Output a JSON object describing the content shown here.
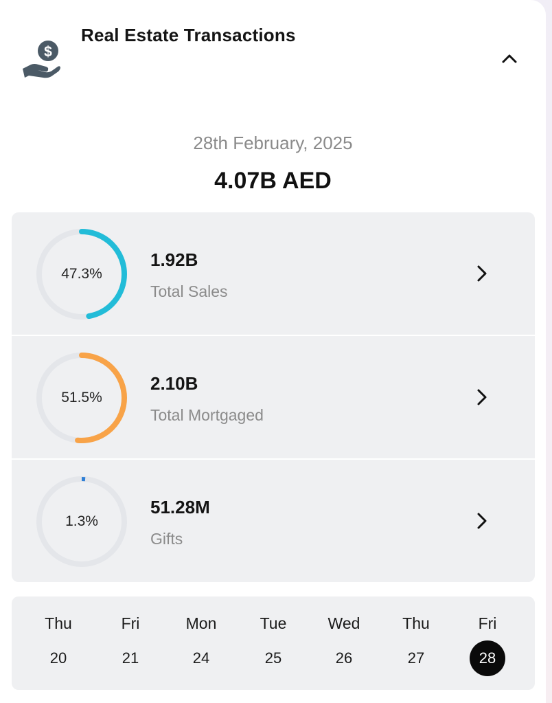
{
  "header": {
    "title": "Real Estate Transactions",
    "icon": "money-hand-icon"
  },
  "summary": {
    "date": "28th February, 2025",
    "total": "4.07B AED"
  },
  "metrics": [
    {
      "percent_label": "47.3%",
      "percent": 47.3,
      "value": "1.92B",
      "label": "Total Sales",
      "color": "#22bcd8"
    },
    {
      "percent_label": "51.5%",
      "percent": 51.5,
      "value": "2.10B",
      "label": "Total Mortgaged",
      "color": "#f8a348"
    },
    {
      "percent_label": "1.3%",
      "percent": 1.3,
      "value": "51.28M",
      "label": "Gifts",
      "color": "#2f7fd6"
    }
  ],
  "days": [
    {
      "name": "Thu",
      "num": "20",
      "selected": false
    },
    {
      "name": "Fri",
      "num": "21",
      "selected": false
    },
    {
      "name": "Mon",
      "num": "24",
      "selected": false
    },
    {
      "name": "Tue",
      "num": "25",
      "selected": false
    },
    {
      "name": "Wed",
      "num": "26",
      "selected": false
    },
    {
      "name": "Thu",
      "num": "27",
      "selected": false
    },
    {
      "name": "Fri",
      "num": "28",
      "selected": true
    }
  ]
}
